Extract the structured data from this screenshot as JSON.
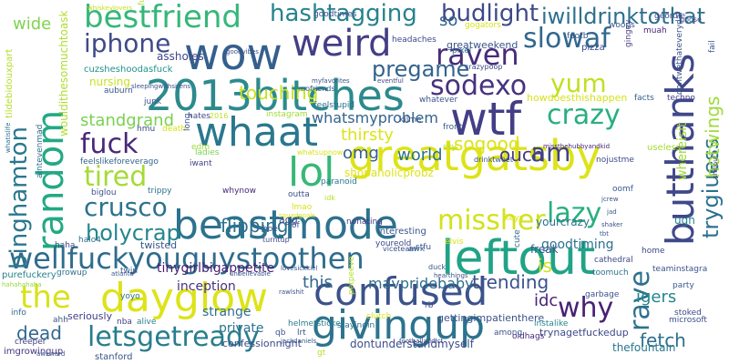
{
  "words": [
    {
      "text": "2013bitches",
      "color": "#2c8a8d"
    },
    {
      "text": "wow",
      "color": "#355f8d"
    },
    {
      "text": "weird",
      "color": "#433e85"
    },
    {
      "text": "random",
      "color": "#23a983"
    },
    {
      "text": "whaat",
      "color": "#2a788e"
    },
    {
      "text": "greatgatsby",
      "color": "#dde318"
    },
    {
      "text": "lol",
      "color": "#37b878"
    },
    {
      "text": "beastmode",
      "color": "#2c728e"
    },
    {
      "text": "wellfuckyouguystoothen",
      "color": "#2f6c8e"
    },
    {
      "text": "confused",
      "color": "#3b528b"
    },
    {
      "text": "dayglow",
      "color": "#dde318"
    },
    {
      "text": "givingup",
      "color": "#2c738e"
    },
    {
      "text": "leftout",
      "color": "#20a386"
    },
    {
      "text": "wtf",
      "color": "#433e85"
    },
    {
      "text": "butthanks",
      "color": "#3f4889"
    },
    {
      "text": "bestfriend",
      "color": "#35b779"
    },
    {
      "text": "hashtagging",
      "color": "#26828e"
    },
    {
      "text": "budlight",
      "color": "#3e4989"
    },
    {
      "text": "iwilldrinktothat",
      "color": "#2d708e"
    },
    {
      "text": "iphone",
      "color": "#3e4a89"
    },
    {
      "text": "slowaf",
      "color": "#31688e"
    },
    {
      "text": "raven",
      "color": "#472c7a"
    },
    {
      "text": "pregame",
      "color": "#33638d"
    },
    {
      "text": "sodexo",
      "color": "#46337e"
    },
    {
      "text": "yum",
      "color": "#c2df23"
    },
    {
      "text": "crazy",
      "color": "#29af7f"
    },
    {
      "text": "fuck",
      "color": "#482878"
    },
    {
      "text": "tired",
      "color": "#a5db36"
    },
    {
      "text": "am",
      "color": "#414487"
    },
    {
      "text": "ouch",
      "color": "#433d84"
    },
    {
      "text": "binghamton",
      "color": "#2a778e"
    },
    {
      "text": "crusco",
      "color": "#2c728e"
    },
    {
      "text": "holycrap",
      "color": "#24868e"
    },
    {
      "text": "missher",
      "color": "#d2e21b"
    },
    {
      "text": "lazy",
      "color": "#29af7f"
    },
    {
      "text": "the",
      "color": "#d8e219"
    },
    {
      "text": "letsgetready",
      "color": "#287d8e"
    },
    {
      "text": "why",
      "color": "#482173"
    },
    {
      "text": "rave",
      "color": "#2d718e"
    },
    {
      "text": "trygiuess",
      "color": "#2c728e"
    },
    {
      "text": "hotwings",
      "color": "#9fda3a"
    },
    {
      "text": "fetch",
      "color": "#2d708e"
    },
    {
      "text": "dead",
      "color": "#31688e"
    },
    {
      "text": "touching",
      "color": "#cae11f"
    },
    {
      "text": "standgrand",
      "color": "#7ad151"
    },
    {
      "text": "whatsmyproblem",
      "color": "#33638d"
    },
    {
      "text": "thirsty",
      "color": "#dde318"
    },
    {
      "text": "sogood",
      "color": "#dde318"
    },
    {
      "text": "omg",
      "color": "#365c8d"
    },
    {
      "text": "world",
      "color": "#2c728e"
    },
    {
      "text": "flipping",
      "color": "#2d708e"
    },
    {
      "text": "trending",
      "color": "#3b528b"
    },
    {
      "text": "this",
      "color": "#31688e"
    },
    {
      "text": "is",
      "color": "#d2e21b"
    },
    {
      "text": "tinygirlbigappetite",
      "color": "#481f70"
    },
    {
      "text": "mavpridebaby",
      "color": "#2e6e8e"
    },
    {
      "text": "igers",
      "color": "#25858e"
    },
    {
      "text": "idc",
      "color": "#482475"
    },
    {
      "text": "wide",
      "color": "#7fd34e"
    },
    {
      "text": "so",
      "color": "#33638d"
    },
    {
      "text": "goodtiming",
      "color": "#2c728e"
    },
    {
      "text": "inception",
      "color": "#46327e"
    },
    {
      "text": "strange",
      "color": "#2e6f8e"
    },
    {
      "text": "private",
      "color": "#2c738e"
    },
    {
      "text": "nursing",
      "color": "#c8e020"
    },
    {
      "text": "assholes",
      "color": "#3f4788"
    },
    {
      "text": "cuzsheshoodasfuck",
      "color": "#20928c"
    },
    {
      "text": "howdoesthishappen",
      "color": "#d5e21a"
    },
    {
      "text": "greatweekend",
      "color": "#3a548c"
    },
    {
      "text": "whereisit",
      "color": "#a2da37"
    },
    {
      "text": "shopaholicprobz",
      "color": "#dde318"
    },
    {
      "text": "ugh",
      "color": "#26828e"
    },
    {
      "text": "freak",
      "color": "#3a548c"
    },
    {
      "text": "yourcrazy",
      "color": "#2d718e"
    },
    {
      "text": "gettingimpatienthere",
      "color": "#3b528b"
    },
    {
      "text": "confessionnight",
      "color": "#3e4a89"
    },
    {
      "text": "dontunderstandmyself",
      "color": "#3d4e8a"
    },
    {
      "text": "thefountain",
      "color": "#2a778e"
    },
    {
      "text": "trynagetfuckedup",
      "color": "#3e4989"
    },
    {
      "text": "imgrowingup",
      "color": "#46337e"
    },
    {
      "text": "stanford",
      "color": "#3b528b"
    },
    {
      "text": "seriously",
      "color": "#433e85"
    },
    {
      "text": "helmetsticker",
      "color": "#287d8e"
    },
    {
      "text": "stayingin",
      "color": "#2c728e"
    },
    {
      "text": "cathedral",
      "color": "#3e4989"
    },
    {
      "text": "useless",
      "color": "#a8db34"
    },
    {
      "text": "facts",
      "color": "#365d8d"
    },
    {
      "text": "techno",
      "color": "#433e85"
    },
    {
      "text": "pizza",
      "color": "#3f4889"
    },
    {
      "text": "muah",
      "color": "#482878"
    },
    {
      "text": "woops",
      "color": "#39568c"
    },
    {
      "text": "goodtimes",
      "color": "#3b528b"
    },
    {
      "text": "whiskeylovers",
      "color": "#c5e021"
    },
    {
      "text": "tildebidouxpart",
      "color": "#b5de2b"
    },
    {
      "text": "wouldithesomuchtoask",
      "color": "#b0dd2f"
    },
    {
      "text": "whatislife",
      "color": "#2c728e"
    },
    {
      "text": "aintevenmad",
      "color": "#2e6e8e"
    },
    {
      "text": "feelslikeforeverago",
      "color": "#33638d"
    },
    {
      "text": "halo4",
      "color": "#2c728e"
    },
    {
      "text": "twin",
      "color": "#365c8d"
    },
    {
      "text": "purefuckery",
      "color": "#26828e"
    },
    {
      "text": "growup",
      "color": "#2c728e"
    },
    {
      "text": "hahahahaha",
      "color": "#95d840"
    },
    {
      "text": "haha",
      "color": "#404688"
    },
    {
      "text": "biglou",
      "color": "#3b528b"
    },
    {
      "text": "info",
      "color": "#31688e"
    },
    {
      "text": "creeper",
      "color": "#433e85"
    },
    {
      "text": "ahh",
      "color": "#39568c"
    },
    {
      "text": "nba",
      "color": "#433e85"
    },
    {
      "text": "alive",
      "color": "#26828e"
    },
    {
      "text": "twisted",
      "color": "#3a548c"
    },
    {
      "text": "trippy",
      "color": "#2c728e"
    },
    {
      "text": "agg",
      "color": "#3e4989"
    },
    {
      "text": "paranoid",
      "color": "#2a778e"
    },
    {
      "text": "interesting",
      "color": "#39568c"
    },
    {
      "text": "nohating",
      "color": "#433e85"
    },
    {
      "text": "youreold",
      "color": "#3e4989"
    },
    {
      "text": "stfu",
      "color": "#3b528b"
    },
    {
      "text": "toomuch",
      "color": "#2c728e"
    },
    {
      "text": "teaminstagra",
      "color": "#3b528b"
    },
    {
      "text": "home",
      "color": "#3e4989"
    },
    {
      "text": "party",
      "color": "#365c8d"
    },
    {
      "text": "microsoft",
      "color": "#3b528b"
    },
    {
      "text": "stoked",
      "color": "#3e4a89"
    },
    {
      "text": "instalike",
      "color": "#25858e"
    },
    {
      "text": "oldhags",
      "color": "#482878"
    },
    {
      "text": "among",
      "color": "#3b528b"
    },
    {
      "text": "garbage",
      "color": "#3b528b"
    },
    {
      "text": "pixel",
      "color": "#2c728e"
    },
    {
      "text": "crazypoop",
      "color": "#3e4989"
    },
    {
      "text": "auburn",
      "color": "#39568c"
    },
    {
      "text": "junk",
      "color": "#3b528b"
    },
    {
      "text": "hmu",
      "color": "#3e4989"
    },
    {
      "text": "death",
      "color": "#d8e219"
    },
    {
      "text": "hates",
      "color": "#3f4788"
    },
    {
      "text": "2016",
      "color": "#c2df23"
    },
    {
      "text": "instagram",
      "color": "#a0da39"
    },
    {
      "text": "whatever",
      "color": "#39568c"
    },
    {
      "text": "front",
      "color": "#365d8d"
    },
    {
      "text": "sky",
      "color": "#b5de2b"
    },
    {
      "text": "keys",
      "color": "#dde318"
    },
    {
      "text": "cute",
      "color": "#31688e"
    },
    {
      "text": "elvis",
      "color": "#dde318"
    },
    {
      "text": "drinktweet",
      "color": "#3b528b"
    },
    {
      "text": "missthehubbyandkid",
      "color": "#482878"
    },
    {
      "text": "nojustme",
      "color": "#3e4989"
    },
    {
      "text": "oomf",
      "color": "#365c8d"
    },
    {
      "text": "ladies",
      "color": "#7ad151"
    },
    {
      "text": "outta",
      "color": "#3b528b"
    },
    {
      "text": "iwant",
      "color": "#433e85"
    },
    {
      "text": "whynow",
      "color": "#482878"
    },
    {
      "text": "yoyo",
      "color": "#2c728e"
    },
    {
      "text": "rb",
      "color": "#3b528b"
    },
    {
      "text": "lrt",
      "color": "#3b528b"
    },
    {
      "text": "qb",
      "color": "#39568c"
    },
    {
      "text": "awk",
      "color": "#365c8d"
    },
    {
      "text": "ifeelstupid",
      "color": "#2c728e"
    },
    {
      "text": "nofriends",
      "color": "#39568c"
    },
    {
      "text": "kilme",
      "color": "#3b528b"
    },
    {
      "text": "funny",
      "color": "#b5de2b"
    },
    {
      "text": "headaches",
      "color": "#3e4989"
    },
    {
      "text": "gogators",
      "color": "#d8e219"
    },
    {
      "text": "footb",
      "color": "#3b528b"
    },
    {
      "text": "gingey",
      "color": "#433e85"
    },
    {
      "text": "geordie",
      "color": "#3e4989"
    },
    {
      "text": "dontwethateverydai",
      "color": "#3b528b"
    },
    {
      "text": "goose",
      "color": "#3e4989"
    },
    {
      "text": "fail",
      "color": "#39568c"
    },
    {
      "text": "lmao",
      "color": "#d8e219"
    },
    {
      "text": "viceteam",
      "color": "#3b528b"
    },
    {
      "text": "awkward",
      "color": "#3b528b"
    },
    {
      "text": "atlanta",
      "color": "#39568c"
    },
    {
      "text": "clutch",
      "color": "#d8e219"
    },
    {
      "text": "petpeeve",
      "color": "#b5de2b"
    },
    {
      "text": "duck",
      "color": "#39568c"
    },
    {
      "text": "hearthings",
      "color": "#3b528b"
    },
    {
      "text": "footballaddict",
      "color": "#3e4989"
    },
    {
      "text": "jackdaniels",
      "color": "#39568c"
    },
    {
      "text": "gt",
      "color": "#b5de2b"
    },
    {
      "text": "edm",
      "color": "#a0da39"
    },
    {
      "text": "hoe",
      "color": "#39568c"
    },
    {
      "text": "of",
      "color": "#3b528b"
    },
    {
      "text": "turntup",
      "color": "#3e4989"
    },
    {
      "text": "long",
      "color": "#3b528b"
    },
    {
      "text": "whatsupnow",
      "color": "#d8e219"
    },
    {
      "text": "sleepingwithsirens",
      "color": "#3b528b"
    },
    {
      "text": "goodvibes",
      "color": "#3b528b"
    },
    {
      "text": "myfavorites",
      "color": "#39568c"
    },
    {
      "text": "eventful",
      "color": "#3e4989"
    },
    {
      "text": "shaker",
      "color": "#3b528b"
    },
    {
      "text": "tbt",
      "color": "#39568c"
    },
    {
      "text": "jcrew",
      "color": "#3b528b"
    },
    {
      "text": "jad",
      "color": "#39568c"
    },
    {
      "text": "shillout",
      "color": "#3e4989"
    },
    {
      "text": "lovesickkiel",
      "color": "#3b528b"
    },
    {
      "text": "unbelievable",
      "color": "#39568c"
    },
    {
      "text": "rawlshit",
      "color": "#3b528b"
    },
    {
      "text": "squadgoals",
      "color": "#d8e219"
    },
    {
      "text": "idk",
      "color": "#b5de2b"
    }
  ]
}
